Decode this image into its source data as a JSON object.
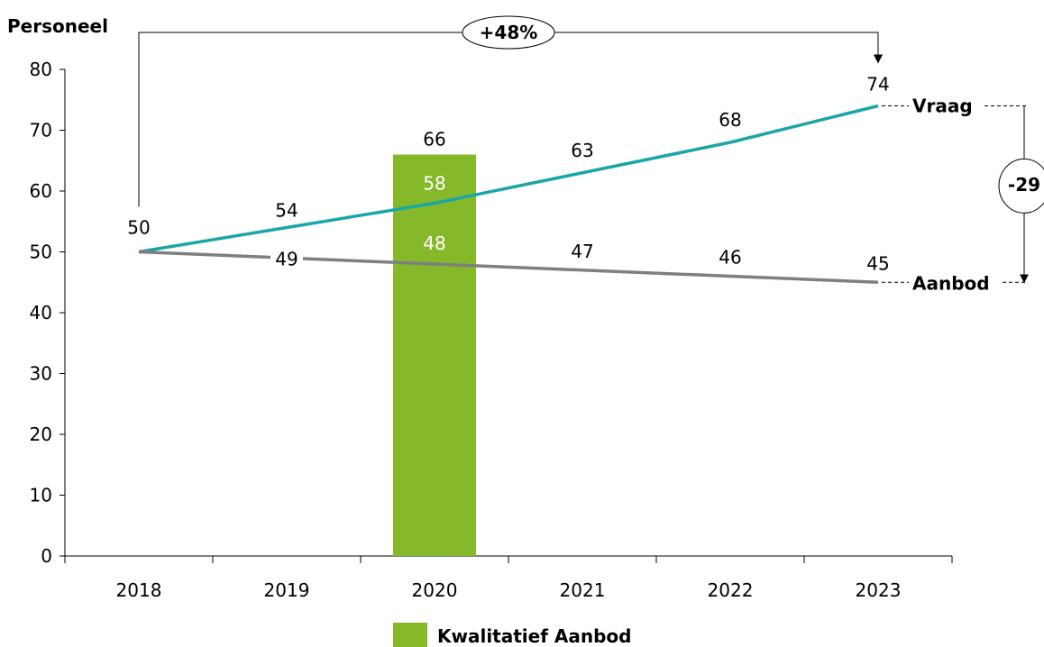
{
  "chart_data": {
    "type": "line",
    "ylabel": "Personeel",
    "ylim": [
      0,
      80
    ],
    "yticks": [
      0,
      10,
      20,
      30,
      40,
      50,
      60,
      70,
      80
    ],
    "categories": [
      "2018",
      "2019",
      "2020",
      "2021",
      "2022",
      "2023"
    ],
    "series": [
      {
        "name": "Vraag",
        "type": "line",
        "color": "#1aa6a6",
        "values": [
          50,
          54,
          58,
          63,
          68,
          74
        ]
      },
      {
        "name": "Aanbod",
        "type": "line",
        "color": "#7f7f7f",
        "values": [
          50,
          49,
          48,
          47,
          46,
          45
        ]
      },
      {
        "name": "Kwalitatief Aanbod",
        "type": "bar",
        "color": "#86b92a",
        "category": "2020",
        "value": 66
      }
    ],
    "annotations": {
      "growth": "+48%",
      "gap": "-29"
    },
    "legend": {
      "position": "bottom-center",
      "items": [
        "Kwalitatief Aanbod"
      ]
    },
    "grid": false
  }
}
